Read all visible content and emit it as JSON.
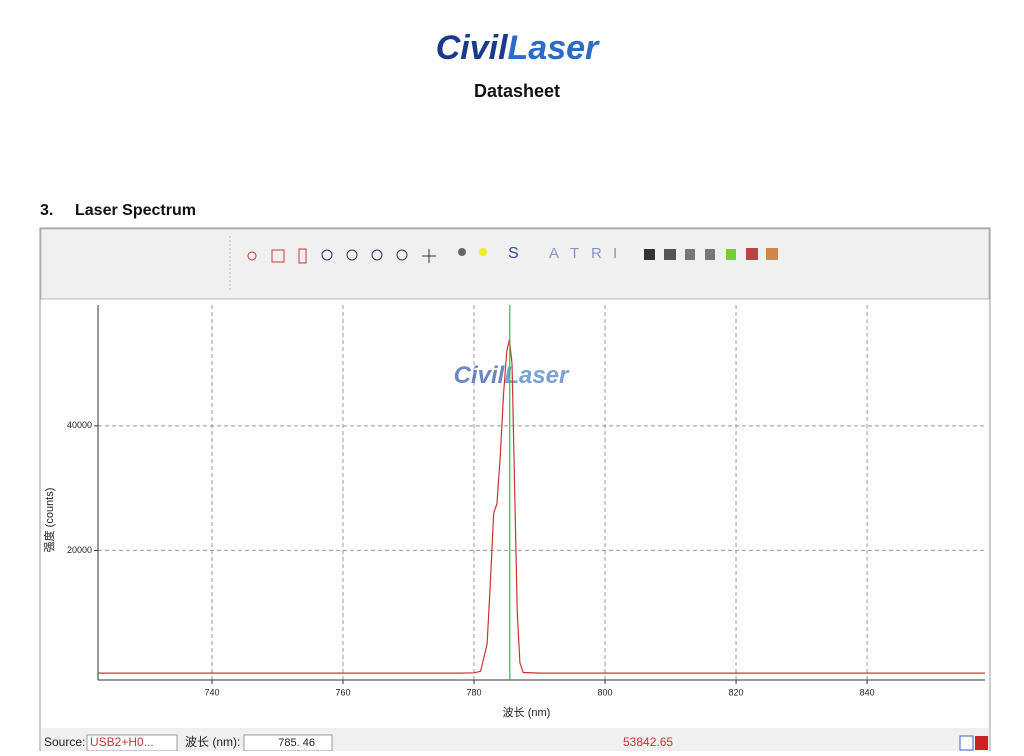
{
  "header": {
    "logo": [
      "Civil",
      "Laser"
    ],
    "title": "Datasheet"
  },
  "section": {
    "number": "3.",
    "title": "Laser Spectrum"
  },
  "toolbar": {
    "labels": [
      "S",
      "A",
      "T",
      "R",
      "I"
    ]
  },
  "chart_data": {
    "type": "line",
    "watermark": [
      "Civil",
      "Laser"
    ],
    "x_label": "波长 (nm)",
    "y_label": "强度 (counts)",
    "xlim": [
      722.6,
      858
    ],
    "ylim": [
      -800,
      59400
    ],
    "xticks": [
      740,
      760,
      780,
      800,
      820,
      840
    ],
    "yticks": [
      20000,
      40000
    ],
    "grid": true,
    "marker_x": 785.46,
    "marker_color": "#22cc22",
    "series": [
      {
        "name": "spectrum",
        "color": "#cc3333",
        "x": [
          722.6,
          740,
          760,
          778,
          780,
          781,
          782,
          782.5,
          783,
          783.5,
          784,
          784.5,
          785,
          785.4,
          785.8,
          786.2,
          786.6,
          787,
          787.5,
          790,
          820,
          858
        ],
        "values": [
          300,
          300,
          300,
          300,
          350,
          600,
          5000,
          15000,
          26000,
          27500,
          35000,
          45000,
          52000,
          53842,
          50000,
          30000,
          10000,
          2000,
          400,
          300,
          300,
          300
        ]
      }
    ]
  },
  "status": {
    "source_label": "Source:",
    "source_value": "USB2+H0...",
    "wavelength_label": "波长 (nm):",
    "wavelength_value": "785. 46",
    "intensity_value": "53842.65"
  }
}
